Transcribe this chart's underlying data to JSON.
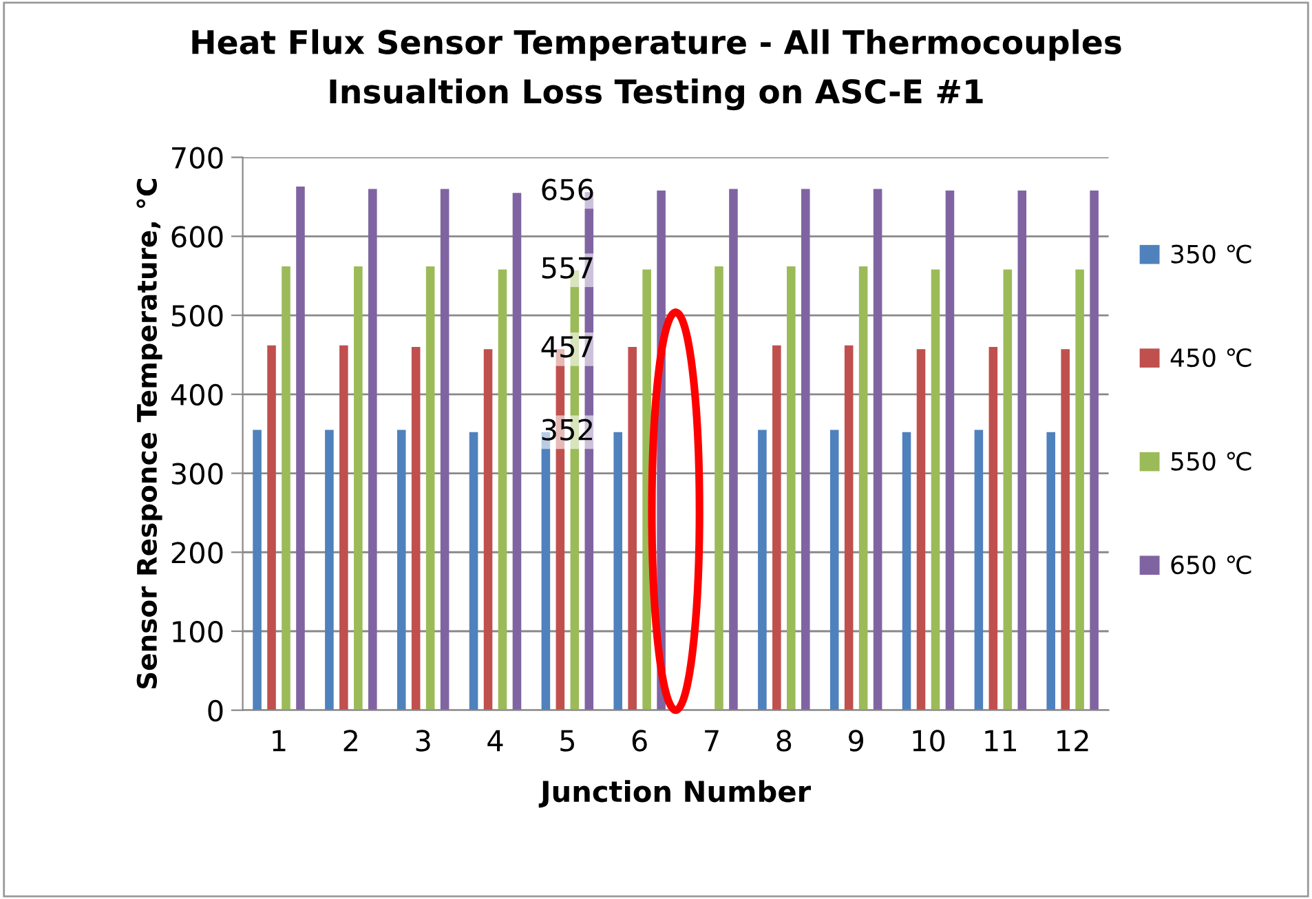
{
  "chart_data": {
    "type": "bar",
    "title": "Heat Flux Sensor Temperature - All Thermocouples",
    "subtitle": "Insualtion Loss Testing on ASC-E #1",
    "xlabel": "Junction Number",
    "ylabel": "Sensor Responce Temperature, °C",
    "categories": [
      "1",
      "2",
      "3",
      "4",
      "5",
      "6",
      "7",
      "8",
      "9",
      "10",
      "11",
      "12"
    ],
    "series": [
      {
        "name": "350 ℃",
        "color": "#4f81bd",
        "values": [
          355,
          355,
          355,
          352,
          352,
          352,
          null,
          355,
          355,
          352,
          355,
          352
        ],
        "value_labels": [
          null,
          null,
          null,
          null,
          "352",
          null,
          null,
          null,
          null,
          null,
          null,
          null
        ]
      },
      {
        "name": "450 ℃",
        "color": "#c0504d",
        "values": [
          462,
          462,
          460,
          457,
          457,
          460,
          null,
          462,
          462,
          457,
          460,
          457
        ],
        "value_labels": [
          null,
          null,
          null,
          null,
          "457",
          null,
          null,
          null,
          null,
          null,
          null,
          null
        ]
      },
      {
        "name": "550 ℃",
        "color": "#9bbb59",
        "values": [
          562,
          562,
          562,
          558,
          557,
          558,
          562,
          562,
          562,
          558,
          558,
          558
        ],
        "value_labels": [
          null,
          null,
          null,
          null,
          "557",
          null,
          null,
          null,
          null,
          null,
          null,
          null
        ]
      },
      {
        "name": "650 ℃",
        "color": "#8064a2",
        "values": [
          663,
          660,
          660,
          655,
          656,
          658,
          660,
          660,
          660,
          658,
          658,
          658
        ],
        "value_labels": [
          null,
          null,
          null,
          null,
          "656",
          null,
          null,
          null,
          null,
          null,
          null,
          null
        ]
      }
    ],
    "ylim": [
      0,
      700
    ],
    "yticks": [
      0,
      100,
      200,
      300,
      400,
      500,
      600,
      700
    ],
    "grid": "y",
    "legend": "right"
  }
}
